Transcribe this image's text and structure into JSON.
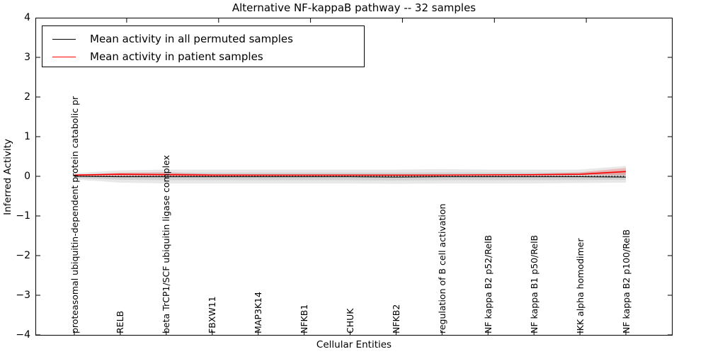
{
  "chart_data": {
    "type": "line",
    "title": "Alternative NF-kappaB pathway -- 32 samples",
    "xlabel": "Cellular Entities",
    "ylabel": "Inferred Activity",
    "ylim": [
      -4,
      4
    ],
    "yticks": [
      "4",
      "3",
      "2",
      "1",
      "0",
      "−1",
      "−2",
      "−3",
      "−4"
    ],
    "ytick_values": [
      4,
      3,
      2,
      1,
      0,
      -1,
      -2,
      -3,
      -4
    ],
    "grid": false,
    "legend_position": "upper left",
    "zero_line_value": 0,
    "categories": [
      "proteasomal ubiquitin-dependent protein catabolic pr",
      "RELB",
      "beta TrCP1/SCF ubiquitin ligase complex",
      "FBXW11",
      "MAP3K14",
      "NFKB1",
      "CHUK",
      "NFKB2",
      "regulation of B cell activation",
      "NF kappa B2 p52/RelB",
      "NF kappa B1 p50/RelB",
      "IKK alpha homodimer",
      "NF kappa B2 p100/RelB"
    ],
    "series": [
      {
        "name": "Mean activity in all permuted samples",
        "color": "#000000",
        "values": [
          0.0,
          -0.01,
          -0.01,
          -0.01,
          -0.01,
          -0.01,
          -0.01,
          -0.02,
          -0.01,
          -0.01,
          -0.01,
          -0.01,
          -0.02
        ]
      },
      {
        "name": "Mean activity in patient samples",
        "color": "#ff0000",
        "values": [
          0.03,
          0.05,
          0.04,
          0.03,
          0.03,
          0.03,
          0.03,
          0.03,
          0.03,
          0.035,
          0.04,
          0.05,
          0.12
        ]
      }
    ],
    "bands": [
      {
        "name": "permuted samples range",
        "color": "#000000",
        "opacity": 0.09,
        "upper": [
          0.08,
          0.15,
          0.17,
          0.17,
          0.17,
          0.17,
          0.17,
          0.17,
          0.18,
          0.17,
          0.17,
          0.17,
          0.26
        ],
        "lower": [
          -0.08,
          -0.16,
          -0.18,
          -0.18,
          -0.18,
          -0.18,
          -0.18,
          -0.19,
          -0.18,
          -0.18,
          -0.18,
          -0.17,
          -0.16
        ]
      },
      {
        "name": "patient samples range",
        "color": "#ff0000",
        "opacity": 0.2,
        "upper": [
          0.04,
          0.09,
          0.1,
          0.05,
          0.045,
          0.04,
          0.045,
          0.04,
          0.04,
          0.05,
          0.06,
          0.1,
          0.21
        ],
        "lower": [
          0.02,
          0.02,
          0.02,
          0.02,
          0.02,
          0.02,
          0.02,
          0.02,
          0.02,
          0.02,
          0.025,
          0.03,
          0.03
        ]
      }
    ],
    "legend": [
      {
        "label": "Mean activity in all permuted samples",
        "color": "#000000"
      },
      {
        "label": "Mean activity in patient samples",
        "color": "#ff0000"
      }
    ]
  }
}
